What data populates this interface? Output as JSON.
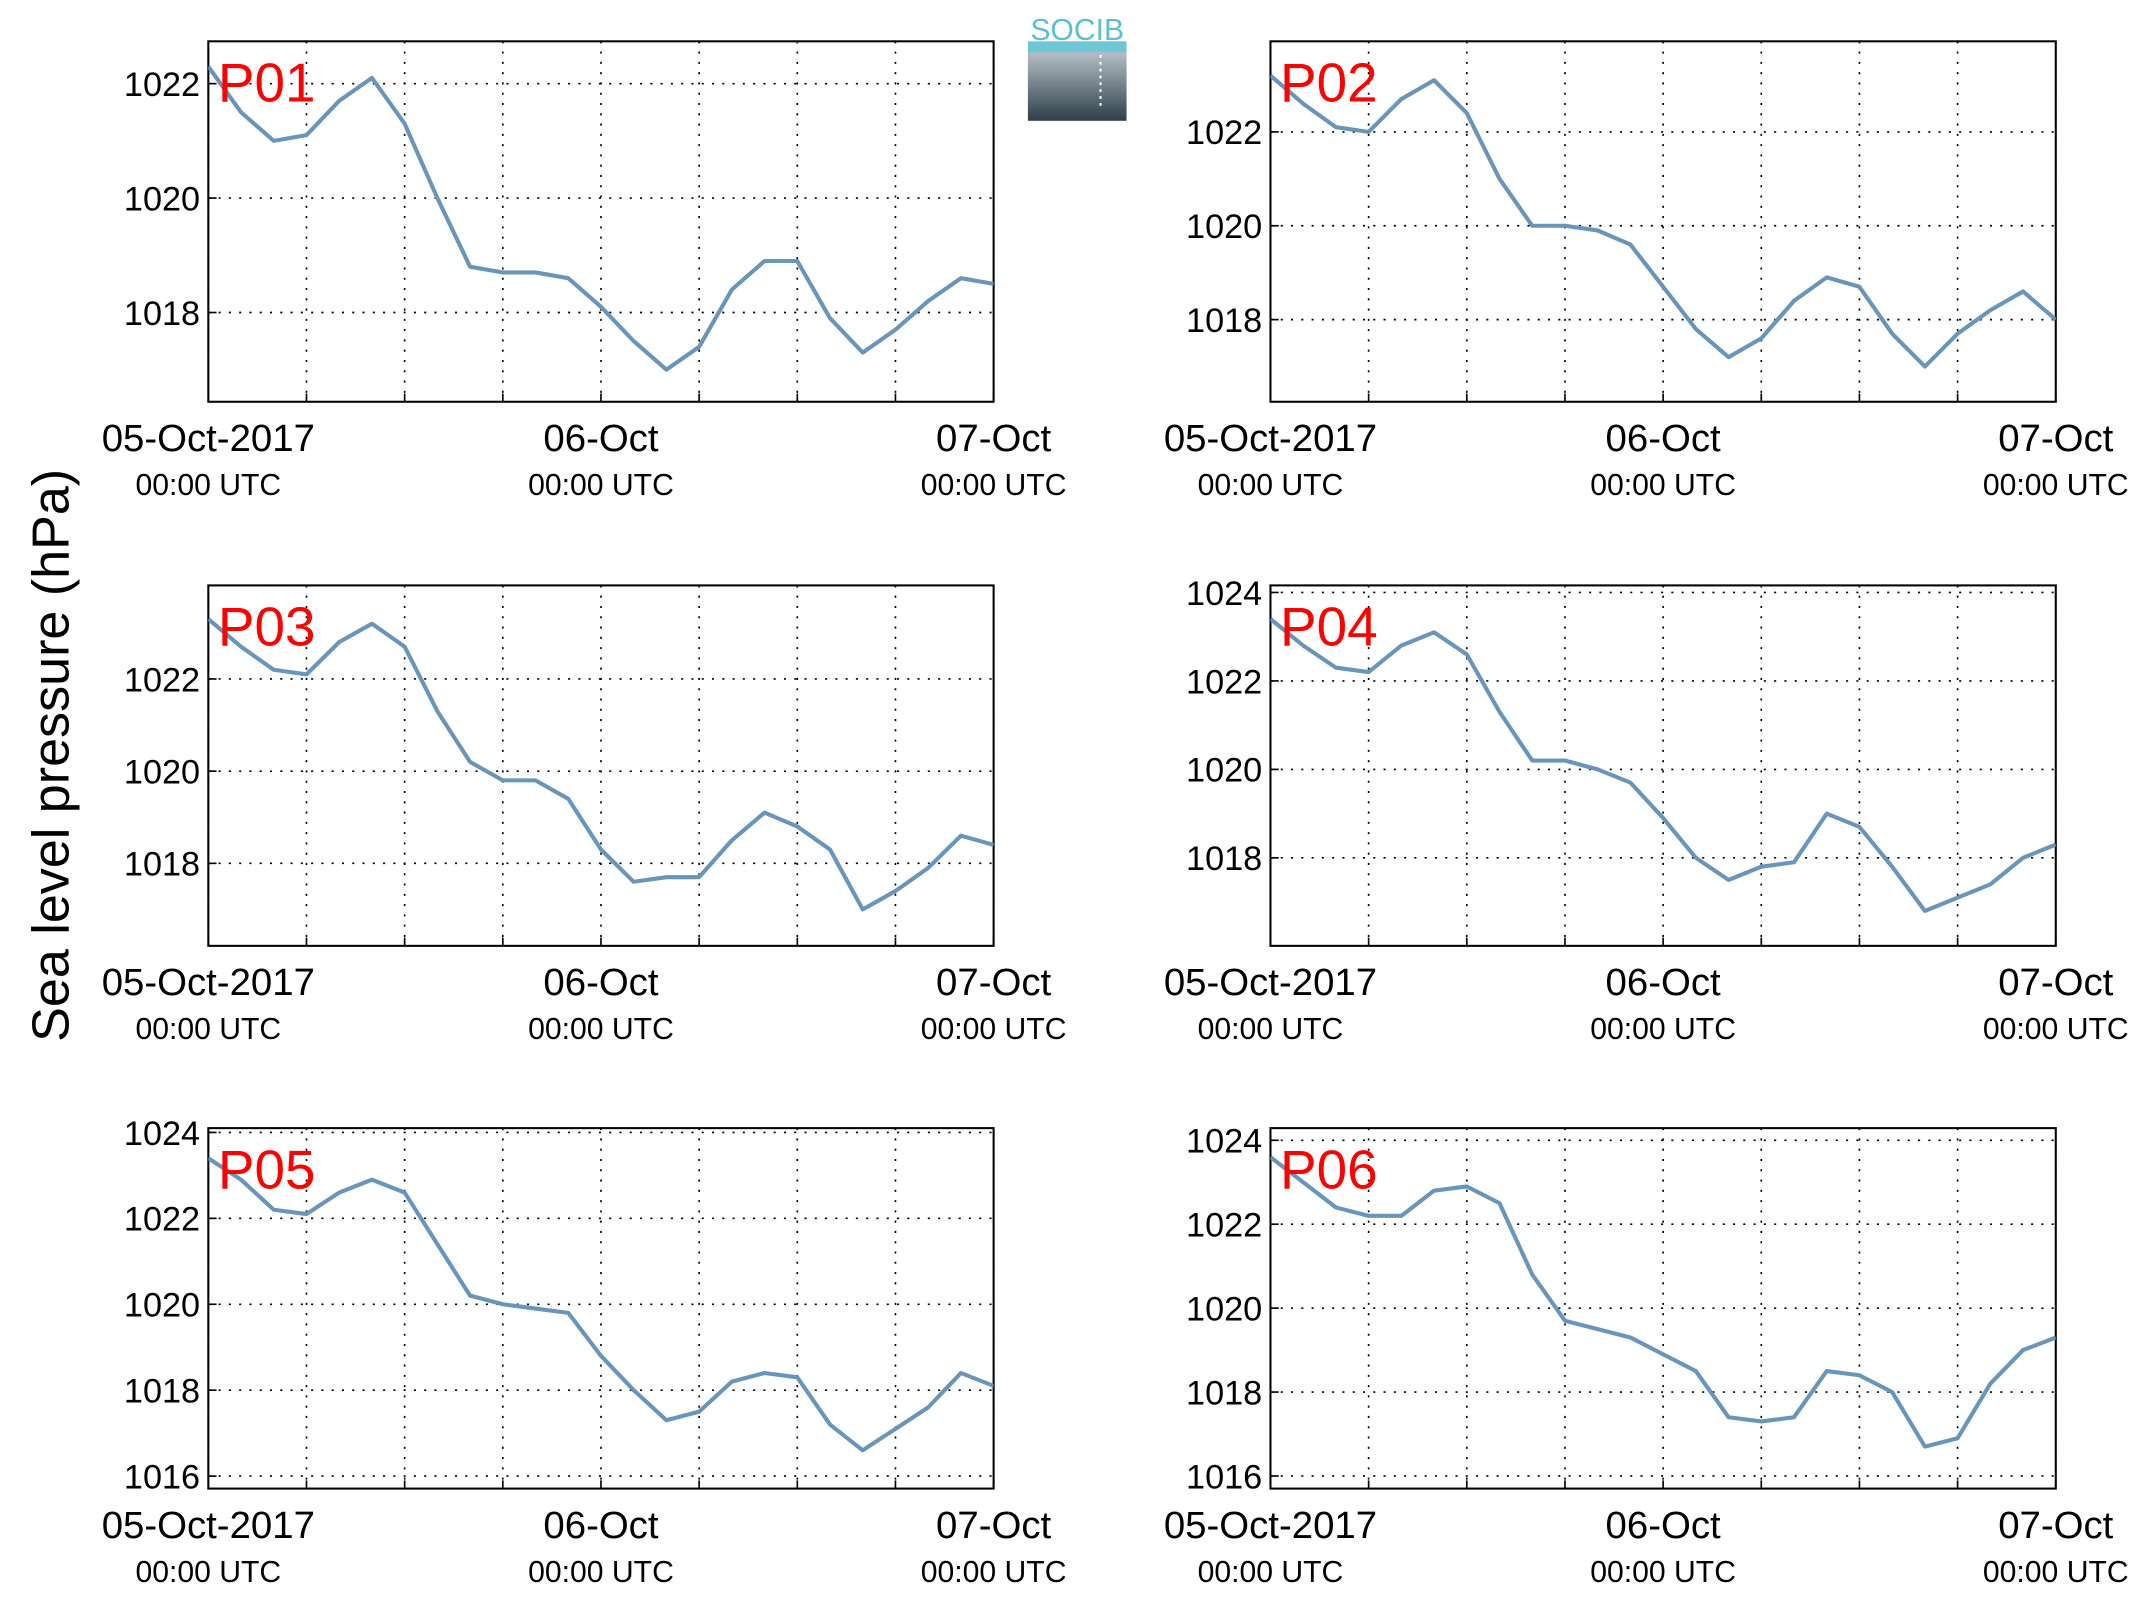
{
  "ylabel": "Sea level pressure (hPa)",
  "logo": "SOCIB",
  "chart_data": [
    {
      "type": "line",
      "title": "P01",
      "x": [
        "2017-10-05 00:00",
        "2017-10-05 02:00",
        "2017-10-05 04:00",
        "2017-10-05 06:00",
        "2017-10-05 08:00",
        "2017-10-05 10:00",
        "2017-10-05 12:00",
        "2017-10-05 14:00",
        "2017-10-05 16:00",
        "2017-10-05 18:00",
        "2017-10-05 20:00",
        "2017-10-05 22:00",
        "2017-10-06 00:00",
        "2017-10-06 02:00",
        "2017-10-06 04:00",
        "2017-10-06 06:00",
        "2017-10-06 08:00",
        "2017-10-06 10:00",
        "2017-10-06 12:00",
        "2017-10-06 14:00",
        "2017-10-06 16:00",
        "2017-10-06 18:00",
        "2017-10-06 20:00",
        "2017-10-06 22:00",
        "2017-10-07 00:00"
      ],
      "series": [
        {
          "color": "#6a95bb",
          "values": [
            1022.3,
            1021.5,
            1021.0,
            1021.1,
            1021.7,
            1022.1,
            1021.3,
            1020.0,
            1018.8,
            1018.7,
            1018.7,
            1018.6,
            1018.1,
            1017.5,
            1017.0,
            1017.4,
            1018.4,
            1018.9,
            1018.9,
            1017.9,
            1017.3,
            1017.7,
            1018.2,
            1018.6,
            1018.5
          ]
        }
      ],
      "xlim": [
        "2017-10-05 00:00",
        "2017-10-07 00:00"
      ],
      "xticks": [
        {
          "value": "2017-10-05 00:00",
          "label": [
            "05-Oct-2017",
            "00:00 UTC"
          ]
        },
        {
          "value": "2017-10-05 06:00",
          "label": null
        },
        {
          "value": "2017-10-05 12:00",
          "label": null
        },
        {
          "value": "2017-10-05 18:00",
          "label": null
        },
        {
          "value": "2017-10-06 00:00",
          "label": [
            "06-Oct",
            "00:00 UTC"
          ]
        },
        {
          "value": "2017-10-06 06:00",
          "label": null
        },
        {
          "value": "2017-10-06 12:00",
          "label": null
        },
        {
          "value": "2017-10-06 18:00",
          "label": null
        },
        {
          "value": "2017-10-07 00:00",
          "label": [
            "07-Oct",
            "00:00 UTC"
          ]
        }
      ],
      "ylim": [
        1016.44,
        1022.74
      ],
      "yticks": [
        1018,
        1020,
        1022
      ],
      "grid": true,
      "title_color": "#ff0000"
    },
    {
      "type": "line",
      "title": "P02",
      "x": [
        "2017-10-05 00:00",
        "2017-10-05 02:00",
        "2017-10-05 04:00",
        "2017-10-05 06:00",
        "2017-10-05 08:00",
        "2017-10-05 10:00",
        "2017-10-05 12:00",
        "2017-10-05 14:00",
        "2017-10-05 16:00",
        "2017-10-05 18:00",
        "2017-10-05 20:00",
        "2017-10-05 22:00",
        "2017-10-06 00:00",
        "2017-10-06 02:00",
        "2017-10-06 04:00",
        "2017-10-06 06:00",
        "2017-10-06 08:00",
        "2017-10-06 10:00",
        "2017-10-06 12:00",
        "2017-10-06 14:00",
        "2017-10-06 16:00",
        "2017-10-06 18:00",
        "2017-10-06 20:00",
        "2017-10-06 22:00",
        "2017-10-07 00:00"
      ],
      "series": [
        {
          "color": "#6a95bb",
          "values": [
            1023.2,
            1022.6,
            1022.1,
            1022.0,
            1022.7,
            1023.1,
            1022.4,
            1021.0,
            1020.0,
            1020.0,
            1019.9,
            1019.6,
            1018.7,
            1017.8,
            1017.2,
            1017.6,
            1018.4,
            1018.9,
            1018.7,
            1017.7,
            1017.0,
            1017.7,
            1018.2,
            1018.6,
            1018.0
          ]
        }
      ],
      "xlim": [
        "2017-10-05 00:00",
        "2017-10-07 00:00"
      ],
      "xticks": [
        {
          "value": "2017-10-05 00:00",
          "label": [
            "05-Oct-2017",
            "00:00 UTC"
          ]
        },
        {
          "value": "2017-10-05 06:00",
          "label": null
        },
        {
          "value": "2017-10-05 12:00",
          "label": null
        },
        {
          "value": "2017-10-05 18:00",
          "label": null
        },
        {
          "value": "2017-10-06 00:00",
          "label": [
            "06-Oct",
            "00:00 UTC"
          ]
        },
        {
          "value": "2017-10-06 06:00",
          "label": null
        },
        {
          "value": "2017-10-06 12:00",
          "label": null
        },
        {
          "value": "2017-10-06 18:00",
          "label": null
        },
        {
          "value": "2017-10-07 00:00",
          "label": [
            "07-Oct",
            "00:00 UTC"
          ]
        }
      ],
      "ylim": [
        1016.25,
        1023.93
      ],
      "yticks": [
        1018,
        1020,
        1022
      ],
      "grid": true,
      "title_color": "#ff0000"
    },
    {
      "type": "line",
      "title": "P03",
      "x": [
        "2017-10-05 00:00",
        "2017-10-05 02:00",
        "2017-10-05 04:00",
        "2017-10-05 06:00",
        "2017-10-05 08:00",
        "2017-10-05 10:00",
        "2017-10-05 12:00",
        "2017-10-05 14:00",
        "2017-10-05 16:00",
        "2017-10-05 18:00",
        "2017-10-05 20:00",
        "2017-10-05 22:00",
        "2017-10-06 00:00",
        "2017-10-06 02:00",
        "2017-10-06 04:00",
        "2017-10-06 06:00",
        "2017-10-06 08:00",
        "2017-10-06 10:00",
        "2017-10-06 12:00",
        "2017-10-06 14:00",
        "2017-10-06 16:00",
        "2017-10-06 18:00",
        "2017-10-06 20:00",
        "2017-10-06 22:00",
        "2017-10-07 00:00"
      ],
      "series": [
        {
          "color": "#6a95bb",
          "values": [
            1023.3,
            1022.7,
            1022.2,
            1022.1,
            1022.8,
            1023.2,
            1022.7,
            1021.3,
            1020.2,
            1019.8,
            1019.8,
            1019.4,
            1018.3,
            1017.6,
            1017.7,
            1017.7,
            1018.5,
            1019.1,
            1018.8,
            1018.3,
            1017.0,
            1017.4,
            1017.9,
            1018.6,
            1018.4
          ]
        }
      ],
      "xlim": [
        "2017-10-05 00:00",
        "2017-10-07 00:00"
      ],
      "xticks": [
        {
          "value": "2017-10-05 00:00",
          "label": [
            "05-Oct-2017",
            "00:00 UTC"
          ]
        },
        {
          "value": "2017-10-05 06:00",
          "label": null
        },
        {
          "value": "2017-10-05 12:00",
          "label": null
        },
        {
          "value": "2017-10-05 18:00",
          "label": null
        },
        {
          "value": "2017-10-06 00:00",
          "label": [
            "06-Oct",
            "00:00 UTC"
          ]
        },
        {
          "value": "2017-10-06 06:00",
          "label": null
        },
        {
          "value": "2017-10-06 12:00",
          "label": null
        },
        {
          "value": "2017-10-06 18:00",
          "label": null
        },
        {
          "value": "2017-10-07 00:00",
          "label": [
            "07-Oct",
            "00:00 UTC"
          ]
        }
      ],
      "ylim": [
        1016.21,
        1024.03
      ],
      "yticks": [
        1018,
        1020,
        1022
      ],
      "grid": true,
      "title_color": "#ff0000"
    },
    {
      "type": "line",
      "title": "P04",
      "x": [
        "2017-10-05 00:00",
        "2017-10-05 02:00",
        "2017-10-05 04:00",
        "2017-10-05 06:00",
        "2017-10-05 08:00",
        "2017-10-05 10:00",
        "2017-10-05 12:00",
        "2017-10-05 14:00",
        "2017-10-05 16:00",
        "2017-10-05 18:00",
        "2017-10-05 20:00",
        "2017-10-05 22:00",
        "2017-10-06 00:00",
        "2017-10-06 02:00",
        "2017-10-06 04:00",
        "2017-10-06 06:00",
        "2017-10-06 08:00",
        "2017-10-06 10:00",
        "2017-10-06 12:00",
        "2017-10-06 14:00",
        "2017-10-06 16:00",
        "2017-10-06 18:00",
        "2017-10-06 20:00",
        "2017-10-06 22:00",
        "2017-10-07 00:00"
      ],
      "series": [
        {
          "color": "#6a95bb",
          "values": [
            1023.4,
            1022.8,
            1022.3,
            1022.2,
            1022.8,
            1023.1,
            1022.6,
            1021.3,
            1020.2,
            1020.2,
            1020.0,
            1019.7,
            1018.9,
            1018.0,
            1017.5,
            1017.8,
            1017.9,
            1019.0,
            1018.7,
            1017.8,
            1016.8,
            1017.1,
            1017.4,
            1018.0,
            1018.3
          ]
        }
      ],
      "xlim": [
        "2017-10-05 00:00",
        "2017-10-07 00:00"
      ],
      "xticks": [
        {
          "value": "2017-10-05 00:00",
          "label": [
            "05-Oct-2017",
            "00:00 UTC"
          ]
        },
        {
          "value": "2017-10-05 06:00",
          "label": null
        },
        {
          "value": "2017-10-05 12:00",
          "label": null
        },
        {
          "value": "2017-10-05 18:00",
          "label": null
        },
        {
          "value": "2017-10-06 00:00",
          "label": [
            "06-Oct",
            "00:00 UTC"
          ]
        },
        {
          "value": "2017-10-06 06:00",
          "label": null
        },
        {
          "value": "2017-10-06 12:00",
          "label": null
        },
        {
          "value": "2017-10-06 18:00",
          "label": null
        },
        {
          "value": "2017-10-07 00:00",
          "label": [
            "07-Oct",
            "00:00 UTC"
          ]
        }
      ],
      "ylim": [
        1016.01,
        1024.16
      ],
      "yticks": [
        1018,
        1020,
        1022,
        1024
      ],
      "grid": true,
      "title_color": "#ff0000"
    },
    {
      "type": "line",
      "title": "P05",
      "x": [
        "2017-10-05 00:00",
        "2017-10-05 02:00",
        "2017-10-05 04:00",
        "2017-10-05 06:00",
        "2017-10-05 08:00",
        "2017-10-05 10:00",
        "2017-10-05 12:00",
        "2017-10-05 14:00",
        "2017-10-05 16:00",
        "2017-10-05 18:00",
        "2017-10-05 20:00",
        "2017-10-05 22:00",
        "2017-10-06 00:00",
        "2017-10-06 02:00",
        "2017-10-06 04:00",
        "2017-10-06 06:00",
        "2017-10-06 08:00",
        "2017-10-06 10:00",
        "2017-10-06 12:00",
        "2017-10-06 14:00",
        "2017-10-06 16:00",
        "2017-10-06 18:00",
        "2017-10-06 20:00",
        "2017-10-06 22:00",
        "2017-10-07 00:00"
      ],
      "series": [
        {
          "color": "#6a95bb",
          "values": [
            1023.4,
            1022.9,
            1022.2,
            1022.1,
            1022.6,
            1022.9,
            1022.6,
            1021.4,
            1020.2,
            1020.0,
            1019.9,
            1019.8,
            1018.8,
            1018.0,
            1017.3,
            1017.5,
            1018.2,
            1018.4,
            1018.3,
            1017.2,
            1016.6,
            1017.1,
            1017.6,
            1018.4,
            1018.1
          ]
        }
      ],
      "xlim": [
        "2017-10-05 00:00",
        "2017-10-07 00:00"
      ],
      "xticks": [
        {
          "value": "2017-10-05 00:00",
          "label": [
            "05-Oct-2017",
            "00:00 UTC"
          ]
        },
        {
          "value": "2017-10-05 06:00",
          "label": null
        },
        {
          "value": "2017-10-05 12:00",
          "label": null
        },
        {
          "value": "2017-10-05 18:00",
          "label": null
        },
        {
          "value": "2017-10-06 00:00",
          "label": [
            "06-Oct",
            "00:00 UTC"
          ]
        },
        {
          "value": "2017-10-06 06:00",
          "label": null
        },
        {
          "value": "2017-10-06 12:00",
          "label": null
        },
        {
          "value": "2017-10-06 18:00",
          "label": null
        },
        {
          "value": "2017-10-07 00:00",
          "label": [
            "07-Oct",
            "00:00 UTC"
          ]
        }
      ],
      "ylim": [
        1015.71,
        1024.1
      ],
      "yticks": [
        1016,
        1018,
        1020,
        1022,
        1024
      ],
      "grid": true,
      "title_color": "#ff0000"
    },
    {
      "type": "line",
      "title": "P06",
      "x": [
        "2017-10-05 00:00",
        "2017-10-05 02:00",
        "2017-10-05 04:00",
        "2017-10-05 06:00",
        "2017-10-05 08:00",
        "2017-10-05 10:00",
        "2017-10-05 12:00",
        "2017-10-05 14:00",
        "2017-10-05 16:00",
        "2017-10-05 18:00",
        "2017-10-05 20:00",
        "2017-10-05 22:00",
        "2017-10-06 00:00",
        "2017-10-06 02:00",
        "2017-10-06 04:00",
        "2017-10-06 06:00",
        "2017-10-06 08:00",
        "2017-10-06 10:00",
        "2017-10-06 12:00",
        "2017-10-06 14:00",
        "2017-10-06 16:00",
        "2017-10-06 18:00",
        "2017-10-06 20:00",
        "2017-10-06 22:00",
        "2017-10-07 00:00"
      ],
      "series": [
        {
          "color": "#6a95bb",
          "values": [
            1023.6,
            1023.0,
            1022.4,
            1022.2,
            1022.2,
            1022.8,
            1022.9,
            1022.5,
            1020.8,
            1019.7,
            1019.5,
            1019.3,
            1018.9,
            1018.5,
            1017.4,
            1017.3,
            1017.4,
            1018.5,
            1018.4,
            1018.0,
            1016.7,
            1016.9,
            1018.2,
            1019.0,
            1019.3
          ]
        }
      ],
      "xlim": [
        "2017-10-05 00:00",
        "2017-10-07 00:00"
      ],
      "xticks": [
        {
          "value": "2017-10-05 00:00",
          "label": [
            "05-Oct-2017",
            "00:00 UTC"
          ]
        },
        {
          "value": "2017-10-05 06:00",
          "label": null
        },
        {
          "value": "2017-10-05 12:00",
          "label": null
        },
        {
          "value": "2017-10-05 18:00",
          "label": null
        },
        {
          "value": "2017-10-06 00:00",
          "label": [
            "06-Oct",
            "00:00 UTC"
          ]
        },
        {
          "value": "2017-10-06 06:00",
          "label": null
        },
        {
          "value": "2017-10-06 12:00",
          "label": null
        },
        {
          "value": "2017-10-06 18:00",
          "label": null
        },
        {
          "value": "2017-10-07 00:00",
          "label": [
            "07-Oct",
            "00:00 UTC"
          ]
        }
      ],
      "ylim": [
        1015.7,
        1024.29
      ],
      "yticks": [
        1016,
        1018,
        1020,
        1022,
        1024
      ],
      "grid": true,
      "title_color": "#ff0000"
    }
  ]
}
